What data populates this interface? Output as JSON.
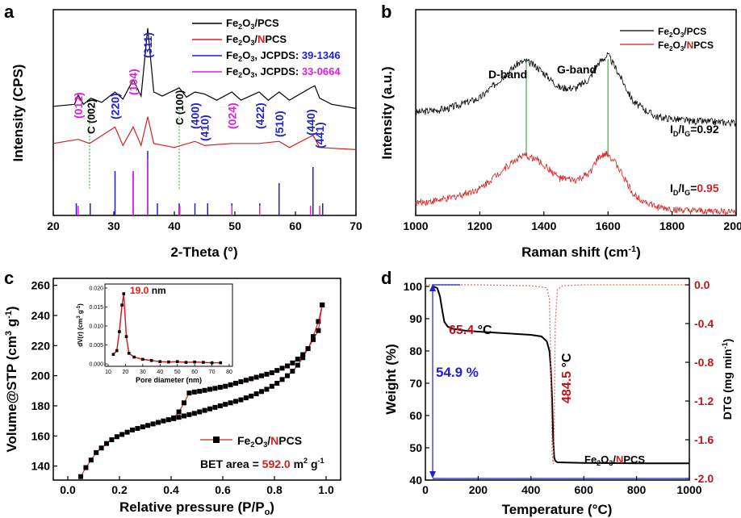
{
  "chart_data": [
    {
      "panel": "a",
      "type": "line",
      "xlabel": "2-Theta (°)",
      "ylabel": "Intensity (CPS)",
      "xlim": [
        20,
        70
      ],
      "xticks": [
        "20",
        "30",
        "40",
        "50",
        "60",
        "70"
      ],
      "series": [
        {
          "name": "Fe2O3/PCS",
          "color": "#000000",
          "x": [
            20,
            23.5,
            24.1,
            25,
            26.2,
            28,
            30.2,
            31.5,
            33.2,
            34.5,
            35.6,
            36.6,
            38,
            40.8,
            42,
            43.4,
            45,
            47,
            49.5,
            51,
            54,
            55.5,
            57.3,
            59,
            62.5,
            63.2,
            64,
            66,
            70
          ],
          "y": [
            0.53,
            0.54,
            0.585,
            0.54,
            0.57,
            0.55,
            0.6,
            0.565,
            0.66,
            0.58,
            0.91,
            0.6,
            0.58,
            0.62,
            0.575,
            0.6,
            0.59,
            0.56,
            0.6,
            0.56,
            0.6,
            0.56,
            0.6,
            0.56,
            0.62,
            0.63,
            0.57,
            0.54,
            0.52
          ]
        },
        {
          "name": "Fe2O3/NPCS",
          "color": "#d42020",
          "x": [
            20,
            24.1,
            26,
            30.2,
            31.5,
            33.2,
            34.5,
            35.6,
            36.6,
            40,
            43.4,
            45,
            49.5,
            54,
            57.3,
            59,
            62.9,
            64,
            70
          ],
          "y": [
            0.35,
            0.37,
            0.35,
            0.43,
            0.34,
            0.43,
            0.34,
            0.48,
            0.35,
            0.33,
            0.36,
            0.34,
            0.35,
            0.35,
            0.36,
            0.33,
            0.39,
            0.33,
            0.32
          ]
        }
      ],
      "reference_lines": [
        {
          "name": "Fe2O3, JCPDS: 39-1346",
          "color": "#1f1fd6",
          "positions": [
            23.8,
            26.1,
            30.2,
            33.2,
            35.6,
            37.2,
            40.8,
            43.4,
            45.5,
            49.5,
            54.1,
            57.3,
            62.9,
            64.5
          ]
        },
        {
          "name": "Fe2O3, JCPDS: 33-0664",
          "color": "#e020e0",
          "positions": [
            24.1,
            33.2,
            35.6,
            40.9,
            49.5,
            54.1,
            62.5,
            64.0
          ]
        }
      ],
      "peak_labels": [
        {
          "text": "(012)",
          "x": 24.1,
          "color": "#e020e0"
        },
        {
          "text": "C (002)",
          "x": 26.2,
          "color": "#000000"
        },
        {
          "text": "(220)",
          "x": 30.2,
          "color": "#1f1fd6"
        },
        {
          "text": "(104)",
          "x": 33.2,
          "color": "#e020e0"
        },
        {
          "text": "(311)",
          "x": 35.6,
          "color": "#1f1fd6"
        },
        {
          "text": "C (100)",
          "x": 40.8,
          "color": "#000000"
        },
        {
          "text": "(400)",
          "x": 43.4,
          "color": "#1f1fd6"
        },
        {
          "text": "(410)",
          "x": 45.0,
          "color": "#1f1fd6"
        },
        {
          "text": "(024)",
          "x": 49.5,
          "color": "#e020e0"
        },
        {
          "text": "(422)",
          "x": 54.1,
          "color": "#1f1fd6"
        },
        {
          "text": "(510)",
          "x": 57.3,
          "color": "#1f1fd6"
        },
        {
          "text": "(440)",
          "x": 62.5,
          "color": "#1f1fd6"
        },
        {
          "text": "(441)",
          "x": 64.0,
          "color": "#1f1fd6"
        }
      ],
      "legend": [
        {
          "pre": "Fe",
          "s1": "2",
          "mid": "O",
          "s2": "3",
          "post": "/PCS",
          "code": "",
          "color": "#000000",
          "codecolor": "#000000"
        },
        {
          "pre": "Fe",
          "s1": "2",
          "mid": "O",
          "s2": "3",
          "post": "/",
          "post2": "N",
          "post3": "PCS",
          "color": "#d42020",
          "codecolor": "#d42020"
        },
        {
          "pre": "Fe",
          "s1": "2",
          "mid": "O",
          "s2": "3",
          "post": ", JCPDS: ",
          "code": "39-1346",
          "color": "#1f1fd6",
          "codecolor": "#1f1fd6"
        },
        {
          "pre": "Fe",
          "s1": "2",
          "mid": "O",
          "s2": "3",
          "post": ", JCPDS: ",
          "code": "33-0664",
          "color": "#e020e0",
          "codecolor": "#e020e0"
        }
      ]
    },
    {
      "panel": "b",
      "type": "line",
      "xlabel": "Raman shift (cm-1)",
      "ylabel": "Intensity (a.u.)",
      "xlim": [
        1000,
        2000
      ],
      "xticks": [
        "1000",
        "1200",
        "1400",
        "1600",
        "1800",
        "2000"
      ],
      "series": [
        {
          "name": "Fe2O3/PCS",
          "color": "#000000",
          "x": [
            1000,
            1100,
            1200,
            1270,
            1320,
            1345,
            1380,
            1450,
            1500,
            1540,
            1570,
            1600,
            1630,
            1680,
            1750,
            1850,
            2000
          ],
          "y": [
            0.5,
            0.52,
            0.57,
            0.67,
            0.74,
            0.75,
            0.72,
            0.62,
            0.62,
            0.66,
            0.74,
            0.78,
            0.7,
            0.55,
            0.48,
            0.46,
            0.45
          ]
        },
        {
          "name": "Fe2O3/NPCS",
          "color": "#d42020",
          "x": [
            1000,
            1100,
            1200,
            1270,
            1320,
            1345,
            1380,
            1450,
            1500,
            1540,
            1570,
            1600,
            1630,
            1680,
            1750,
            1850,
            2000
          ],
          "y": [
            0.06,
            0.08,
            0.13,
            0.22,
            0.28,
            0.29,
            0.27,
            0.18,
            0.17,
            0.2,
            0.28,
            0.3,
            0.24,
            0.1,
            0.04,
            0.02,
            0.02
          ]
        }
      ],
      "annotations": [
        {
          "text": "D-band",
          "x": 1345
        },
        {
          "text": "G-band",
          "x": 1600
        },
        {
          "text": "=0.92",
          "ratio": "0.92",
          "color": "#000000"
        },
        {
          "text": "=0.95",
          "ratio": "0.95",
          "color": "#d42020"
        }
      ],
      "band_positions": [
        1345,
        1600
      ],
      "legend": [
        {
          "label": "Fe2O3/PCS",
          "color": "#000000"
        },
        {
          "label": "Fe2O3/NPCS",
          "color": "#d42020"
        }
      ]
    },
    {
      "panel": "c",
      "type": "line",
      "xlabel": "Relative pressure (P/Po)",
      "ylabel": "Volume@STP (cm3 g-1)",
      "xlim": [
        0.0,
        1.0
      ],
      "ylim": [
        130,
        260
      ],
      "xticks": [
        "0.0",
        "0.2",
        "0.4",
        "0.6",
        "0.8",
        "1.0"
      ],
      "yticks": [
        "140",
        "160",
        "180",
        "200",
        "220",
        "240",
        "260"
      ],
      "series": [
        {
          "name": "Fe2O3/NPCS",
          "color": "#d42020",
          "marker": "square",
          "adsorption": {
            "x": [
              0.05,
              0.07,
              0.09,
              0.11,
              0.13,
              0.15,
              0.17,
              0.19,
              0.21,
              0.23,
              0.25,
              0.27,
              0.29,
              0.31,
              0.33,
              0.35,
              0.37,
              0.39,
              0.41,
              0.43,
              0.45,
              0.47,
              0.49,
              0.51,
              0.53,
              0.55,
              0.57,
              0.59,
              0.61,
              0.63,
              0.65,
              0.67,
              0.69,
              0.71,
              0.73,
              0.75,
              0.77,
              0.79,
              0.81,
              0.83,
              0.85,
              0.87,
              0.89,
              0.91,
              0.93,
              0.95,
              0.97,
              0.985
            ],
            "y": [
              133,
              139,
              144,
              149,
              152,
              155,
              157.5,
              159.5,
              161,
              162.5,
              164,
              165,
              166,
              167,
              168,
              169,
              170,
              170.8,
              171.5,
              172.4,
              173.3,
              174.2,
              175,
              176,
              177,
              178,
              179,
              180,
              181,
              182,
              183,
              184,
              185.3,
              186.5,
              188,
              189.5,
              191,
              193,
              195,
              197.5,
              200,
              203,
              207,
              212,
              218,
              226,
              236,
              247
            ]
          },
          "desorption": {
            "x": [
              0.985,
              0.97,
              0.95,
              0.93,
              0.91,
              0.89,
              0.87,
              0.85,
              0.83,
              0.81,
              0.79,
              0.77,
              0.75,
              0.73,
              0.71,
              0.69,
              0.67,
              0.65,
              0.63,
              0.61,
              0.59,
              0.57,
              0.55,
              0.53,
              0.51,
              0.49,
              0.47,
              0.45,
              0.43,
              0.41
            ],
            "y": [
              247,
              230,
              224,
              218,
              214,
              211,
              208.5,
              206.5,
              205,
              203.5,
              202,
              201,
              200,
              199,
              198,
              197,
              196,
              195,
              194,
              193,
              192.3,
              191.6,
              191,
              190.3,
              189.7,
              189.2,
              188.5,
              182,
              176,
              172
            ]
          }
        }
      ],
      "legend": [
        {
          "label": "Fe2O3/NPCS"
        }
      ],
      "annotation": {
        "pre": "BET area = ",
        "value": "592.0",
        "unit": " m",
        "sup": "2",
        "unit2": " g",
        "sup2": "-1"
      },
      "inset": {
        "type": "line",
        "xlabel": "Pore diameter (nm)",
        "ylabel": "dV(r) (cm3 g-1)",
        "xlim": [
          10,
          80
        ],
        "ylim": [
          0,
          0.02
        ],
        "xticks": [
          "10",
          "20",
          "30",
          "40",
          "50",
          "60",
          "70",
          "80"
        ],
        "yticks": [
          "0.000",
          "0.005",
          "0.010",
          "0.015",
          "0.020"
        ],
        "x": [
          13,
          15,
          16.5,
          18,
          19,
          20.5,
          22,
          25,
          30,
          35,
          40,
          45,
          50,
          55,
          60,
          65,
          70,
          75
        ],
        "y": [
          0.0025,
          0.0035,
          0.0085,
          0.0155,
          0.0185,
          0.0072,
          0.0028,
          0.0018,
          0.0012,
          0.0009,
          0.0006,
          0.0005,
          0.0006,
          0.0004,
          0.0005,
          0.0004,
          0.0003,
          0.0003
        ],
        "annotation_value": "19.0",
        "annotation_unit": " nm"
      }
    },
    {
      "panel": "d",
      "type": "line",
      "xlabel": "Temperature (°C)",
      "ylabel": "Weight (%)",
      "y2label": "DTG (mg min-1)",
      "xlim": [
        0,
        1000
      ],
      "ylim": [
        40,
        100
      ],
      "y2lim": [
        -2.0,
        0.0
      ],
      "xticks": [
        "0",
        "200",
        "400",
        "600",
        "800",
        "1000"
      ],
      "yticks": [
        "40",
        "50",
        "60",
        "70",
        "80",
        "90",
        "100"
      ],
      "y2ticks": [
        "0.0",
        "-0.4",
        "-0.8",
        "-1.2",
        "-1.6",
        "-2.0"
      ],
      "series": [
        {
          "name": "Weight",
          "color": "#000000",
          "x": [
            30,
            45,
            55,
            65,
            72,
            85,
            110,
            150,
            200,
            300,
            400,
            440,
            460,
            470,
            475,
            480,
            484,
            488,
            492,
            500,
            600,
            800,
            1000
          ],
          "y": [
            100,
            99.5,
            97,
            92,
            89,
            87.5,
            86.8,
            86.3,
            86,
            85.5,
            85,
            84.5,
            83,
            80,
            75,
            65,
            53,
            47,
            46,
            45.5,
            45.3,
            45.2,
            45.2
          ]
        },
        {
          "name": "DTG",
          "color": "#e66b6b",
          "axis": "y2",
          "x": [
            0,
            200,
            400,
            460,
            470,
            475,
            480,
            484,
            488,
            492,
            500,
            520,
            600,
            800,
            1000
          ],
          "y": [
            0.0,
            0.0,
            -0.01,
            -0.03,
            -0.15,
            -0.8,
            -1.75,
            -1.85,
            -1.5,
            -0.4,
            -0.05,
            -0.01,
            0.0,
            0.0,
            0.0
          ]
        }
      ],
      "annotations": [
        {
          "text": "65.4",
          "unit": " °C",
          "color": "#c0141a"
        },
        {
          "text": "484.5",
          "unit": " °C",
          "color": "#c0141a"
        },
        {
          "text": "54.9 %",
          "color": "#1f1fd6"
        }
      ],
      "label": {
        "pre": "Fe",
        "s1": "2",
        "mid": "O",
        "s2": "3",
        "post": "/",
        "n": "N",
        "post2": "PCS"
      }
    }
  ],
  "panel_letters": [
    "a",
    "b",
    "c",
    "d"
  ]
}
